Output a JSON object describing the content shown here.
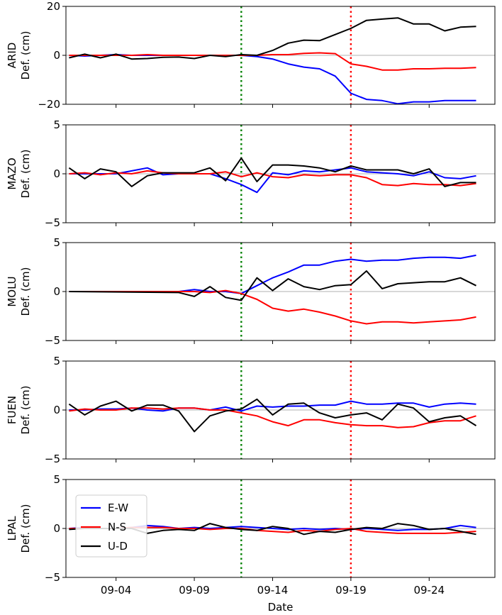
{
  "chart_data": {
    "type": "line",
    "xlabel": "Date",
    "x_tick_labels": [
      "09-04",
      "09-09",
      "09-14",
      "09-19",
      "09-24"
    ],
    "x_tick_days": [
      4,
      9,
      14,
      19,
      24
    ],
    "xlim": [
      0.8,
      28.2
    ],
    "days": [
      1,
      2,
      3,
      4,
      5,
      6,
      7,
      8,
      9,
      10,
      11,
      12,
      13,
      14,
      15,
      16,
      17,
      18,
      19,
      20,
      21,
      22,
      23,
      24,
      25,
      26,
      27
    ],
    "vlines": [
      {
        "day": 12,
        "color": "#008000"
      },
      {
        "day": 19,
        "color": "#ff0000"
      }
    ],
    "legend": [
      {
        "label": "E-W",
        "color": "#0000ff"
      },
      {
        "label": "N-S",
        "color": "#ff0000"
      },
      {
        "label": "U-D",
        "color": "#000000"
      }
    ],
    "panels": [
      {
        "station": "ARID",
        "ylabel_line1": "ARID",
        "ylabel_line2": "Def. (cm)",
        "ylim": [
          -20,
          20
        ],
        "yticks": [
          -20,
          0,
          20
        ],
        "series": [
          {
            "name": "E-W",
            "color": "#0000ff",
            "x": [
              1,
              2,
              3,
              4,
              5,
              6,
              7,
              8,
              9,
              10,
              11,
              12,
              13,
              14,
              15,
              16,
              17,
              18,
              19,
              20,
              21,
              22,
              23,
              24,
              25,
              26,
              27
            ],
            "values": [
              0,
              -0.3,
              0,
              0.3,
              0,
              0,
              0,
              0,
              0,
              0,
              0,
              0,
              -0.5,
              -1.5,
              -3.5,
              -4.8,
              -5.5,
              -8.5,
              -15.5,
              -18,
              -18.5,
              -19.8,
              -19,
              -19,
              -18.5,
              -18.5,
              -18.5
            ]
          },
          {
            "name": "N-S",
            "color": "#ff0000",
            "x": [
              1,
              2,
              3,
              4,
              5,
              6,
              7,
              8,
              9,
              10,
              11,
              12,
              13,
              14,
              15,
              16,
              17,
              18,
              19,
              20,
              21,
              22,
              23,
              24,
              25,
              26,
              27
            ],
            "values": [
              0,
              0,
              0,
              0,
              0,
              0.3,
              0,
              0,
              0,
              0,
              0,
              0,
              0,
              0.3,
              0.3,
              0.8,
              1,
              0.7,
              -3.5,
              -4.5,
              -6,
              -6,
              -5.5,
              -5.5,
              -5.3,
              -5.3,
              -5
            ]
          },
          {
            "name": "U-D",
            "color": "#000000",
            "x": [
              1,
              2,
              3,
              4,
              5,
              6,
              7,
              8,
              9,
              10,
              11,
              12,
              13,
              14,
              15,
              16,
              17,
              18,
              19,
              20,
              21,
              22,
              23,
              24,
              25,
              26,
              27
            ],
            "values": [
              -1,
              0.5,
              -1,
              0.5,
              -1.5,
              -1.3,
              -0.8,
              -0.7,
              -1.3,
              0,
              -0.5,
              0.3,
              0,
              2,
              5,
              6.2,
              6,
              8.5,
              11,
              14.3,
              14.8,
              15.3,
              12.8,
              12.8,
              10,
              11.5,
              11.8
            ]
          }
        ]
      },
      {
        "station": "MAZO",
        "ylabel_line1": "MAZO",
        "ylabel_line2": "Def. (cm)",
        "ylim": [
          -5,
          5
        ],
        "yticks": [
          -5,
          0,
          5
        ],
        "series": [
          {
            "name": "E-W",
            "color": "#0000ff",
            "x": [
              1,
              2,
              3,
              4,
              5,
              6,
              7,
              8,
              9,
              10,
              11,
              12,
              13,
              14,
              15,
              16,
              17,
              18,
              19,
              20,
              21,
              22,
              23,
              24,
              25,
              26,
              27
            ],
            "values": [
              0,
              0,
              0,
              0,
              0.3,
              0.6,
              -0.1,
              0,
              0,
              0,
              -0.5,
              -1.1,
              -1.9,
              0.1,
              -0.1,
              0.3,
              0.2,
              0.4,
              0.6,
              0.2,
              0.1,
              0,
              -0.2,
              0.2,
              -0.4,
              -0.5,
              -0.2
            ]
          },
          {
            "name": "N-S",
            "color": "#ff0000",
            "x": [
              1,
              2,
              3,
              4,
              5,
              6,
              7,
              8,
              9,
              10,
              11,
              12,
              13,
              14,
              15,
              16,
              17,
              18,
              19,
              20,
              21,
              22,
              23,
              24,
              25,
              26,
              27
            ],
            "values": [
              0,
              0.1,
              -0.1,
              0.1,
              0,
              0.3,
              0.1,
              0,
              0,
              0,
              0.2,
              -0.3,
              0.1,
              -0.3,
              -0.4,
              -0.1,
              -0.2,
              -0.1,
              -0.1,
              -0.4,
              -1.1,
              -1.2,
              -1,
              -1.1,
              -1.1,
              -1.2,
              -1
            ]
          },
          {
            "name": "U-D",
            "color": "#000000",
            "x": [
              1,
              2,
              3,
              4,
              5,
              6,
              7,
              8,
              9,
              10,
              11,
              12,
              13,
              14,
              15,
              16,
              17,
              18,
              19,
              20,
              21,
              22,
              23,
              24,
              25,
              26,
              27
            ],
            "values": [
              0.6,
              -0.5,
              0.5,
              0.2,
              -1.3,
              -0.2,
              0.1,
              0.1,
              0.1,
              0.6,
              -0.7,
              1.6,
              -0.8,
              0.9,
              0.9,
              0.8,
              0.6,
              0.2,
              0.8,
              0.4,
              0.4,
              0.4,
              0,
              0.5,
              -1.3,
              -0.9,
              -0.9
            ]
          }
        ]
      },
      {
        "station": "MOLU",
        "ylabel_line1": "MOLU",
        "ylabel_line2": "Def. (cm)",
        "ylim": [
          -5,
          5
        ],
        "yticks": [
          -5,
          0,
          5
        ],
        "series": [
          {
            "name": "E-W",
            "color": "#0000ff",
            "x": [
              1,
              8,
              9,
              10,
              11,
              12,
              13,
              14,
              15,
              16,
              17,
              18,
              19,
              20,
              21,
              22,
              23,
              24,
              25,
              26,
              27
            ],
            "values": [
              0,
              0,
              0.2,
              0,
              0,
              -0.2,
              0.6,
              1.4,
              2,
              2.7,
              2.7,
              3.1,
              3.3,
              3.1,
              3.2,
              3.2,
              3.4,
              3.5,
              3.5,
              3.4,
              3.7
            ]
          },
          {
            "name": "N-S",
            "color": "#ff0000",
            "x": [
              1,
              8,
              9,
              10,
              11,
              12,
              13,
              14,
              15,
              16,
              17,
              18,
              19,
              20,
              21,
              22,
              23,
              24,
              25,
              26,
              27
            ],
            "values": [
              0,
              0,
              0,
              -0.1,
              0.1,
              -0.2,
              -0.8,
              -1.7,
              -2,
              -1.8,
              -2.1,
              -2.5,
              -3,
              -3.3,
              -3.1,
              -3.1,
              -3.2,
              -3.1,
              -3,
              -2.9,
              -2.6
            ]
          },
          {
            "name": "U-D",
            "color": "#000000",
            "x": [
              1,
              8,
              9,
              10,
              11,
              12,
              13,
              14,
              15,
              16,
              17,
              18,
              19,
              20,
              21,
              22,
              23,
              24,
              25,
              26,
              27
            ],
            "values": [
              0,
              -0.1,
              -0.5,
              0.5,
              -0.6,
              -0.9,
              1.4,
              0.1,
              1.3,
              0.5,
              0.2,
              0.6,
              0.7,
              2.1,
              0.3,
              0.8,
              0.9,
              1,
              1,
              1.4,
              0.6
            ]
          }
        ]
      },
      {
        "station": "FUEN",
        "ylabel_line1": "FUEN",
        "ylabel_line2": "Def. (cm)",
        "ylim": [
          -5,
          5
        ],
        "yticks": [
          -5,
          0,
          5
        ],
        "series": [
          {
            "name": "E-W",
            "color": "#0000ff",
            "x": [
              1,
              2,
              3,
              4,
              5,
              6,
              7,
              8,
              9,
              10,
              11,
              12,
              13,
              14,
              15,
              16,
              17,
              18,
              19,
              20,
              21,
              22,
              23,
              24,
              25,
              26,
              27
            ],
            "values": [
              0,
              0,
              0.1,
              0.1,
              0.2,
              0,
              -0.1,
              0.2,
              0.2,
              0,
              0.3,
              -0.1,
              0.4,
              0.3,
              0.4,
              0.4,
              0.5,
              0.5,
              0.9,
              0.6,
              0.6,
              0.7,
              0.7,
              0.3,
              0.6,
              0.7,
              0.6
            ]
          },
          {
            "name": "N-S",
            "color": "#ff0000",
            "x": [
              1,
              2,
              3,
              4,
              5,
              6,
              7,
              8,
              9,
              10,
              11,
              12,
              13,
              14,
              15,
              16,
              17,
              18,
              19,
              20,
              21,
              22,
              23,
              24,
              25,
              26,
              27
            ],
            "values": [
              -0.1,
              0.1,
              0,
              0,
              0.2,
              0.2,
              0.1,
              0.2,
              0.2,
              0,
              0,
              -0.3,
              -0.6,
              -1.2,
              -1.6,
              -1,
              -1,
              -1.3,
              -1.5,
              -1.6,
              -1.6,
              -1.8,
              -1.7,
              -1.3,
              -1.1,
              -1.1,
              -0.6
            ]
          },
          {
            "name": "U-D",
            "color": "#000000",
            "x": [
              1,
              2,
              3,
              4,
              5,
              6,
              7,
              8,
              9,
              10,
              11,
              12,
              13,
              14,
              15,
              16,
              17,
              18,
              19,
              20,
              21,
              22,
              23,
              24,
              25,
              26,
              27
            ],
            "values": [
              0.6,
              -0.5,
              0.4,
              0.9,
              -0.1,
              0.5,
              0.5,
              -0.1,
              -2.2,
              -0.6,
              -0.1,
              0.1,
              1.1,
              -0.5,
              0.6,
              0.7,
              -0.3,
              -0.8,
              -0.5,
              -0.3,
              -1,
              0.6,
              0.2,
              -1.2,
              -0.8,
              -0.6,
              -1.6
            ]
          }
        ]
      },
      {
        "station": "LPAL",
        "ylabel_line1": "LPAL",
        "ylabel_line2": "Def. (cm)",
        "ylim": [
          -5,
          5
        ],
        "yticks": [
          -5,
          0,
          5
        ],
        "series": [
          {
            "name": "E-W",
            "color": "#0000ff",
            "x": [
              1,
              2,
              3,
              4,
              5,
              6,
              7,
              8,
              9,
              10,
              11,
              12,
              13,
              14,
              15,
              16,
              17,
              18,
              19,
              20,
              21,
              22,
              23,
              24,
              25,
              26,
              27
            ],
            "values": [
              0,
              0.1,
              0,
              0,
              0.1,
              0.3,
              0.2,
              0,
              0.1,
              0,
              0.1,
              0.2,
              0.1,
              0,
              -0.1,
              0,
              -0.1,
              0,
              -0.1,
              0,
              -0.1,
              -0.2,
              -0.1,
              -0.1,
              0,
              0.3,
              0.1
            ]
          },
          {
            "name": "N-S",
            "color": "#ff0000",
            "x": [
              1,
              2,
              3,
              4,
              5,
              6,
              7,
              8,
              9,
              10,
              11,
              12,
              13,
              14,
              15,
              16,
              17,
              18,
              19,
              20,
              21,
              22,
              23,
              24,
              25,
              26,
              27
            ],
            "values": [
              0,
              0,
              0,
              0,
              0.1,
              0.1,
              0.1,
              0,
              0,
              -0.1,
              0,
              0,
              -0.2,
              -0.3,
              -0.4,
              -0.2,
              -0.3,
              -0.1,
              0,
              -0.3,
              -0.4,
              -0.5,
              -0.5,
              -0.5,
              -0.5,
              -0.4,
              -0.3
            ]
          },
          {
            "name": "U-D",
            "color": "#000000",
            "x": [
              1,
              2,
              3,
              4,
              5,
              6,
              7,
              8,
              9,
              10,
              11,
              12,
              13,
              14,
              15,
              16,
              17,
              18,
              19,
              20,
              21,
              22,
              23,
              24,
              25,
              26,
              27
            ],
            "values": [
              -0.1,
              0,
              0,
              0,
              0,
              -0.5,
              -0.2,
              -0.1,
              -0.2,
              0.5,
              0.1,
              -0.1,
              -0.2,
              0.2,
              0,
              -0.6,
              -0.3,
              -0.4,
              -0.1,
              0.1,
              0,
              0.5,
              0.3,
              -0.1,
              0,
              -0.3,
              -0.6
            ]
          }
        ]
      }
    ]
  }
}
